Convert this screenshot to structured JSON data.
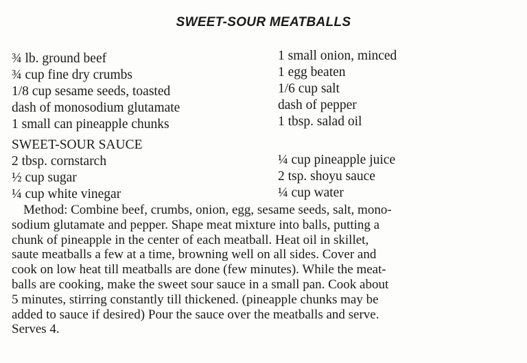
{
  "title": "SWEET-SOUR MEATBALLS",
  "ingredients_left": [
    "¾ lb. ground beef",
    "¾ cup fine dry crumbs",
    "1/8 cup sesame seeds, toasted",
    "dash of monosodium glutamate",
    "1 small can pineapple chunks"
  ],
  "ingredients_right": [
    "1 small onion, minced",
    "1 egg beaten",
    "1/6 cup salt",
    "dash of pepper",
    "1 tbsp. salad oil"
  ],
  "sauce": {
    "heading": "SWEET-SOUR SAUCE",
    "left": [
      "2 tbsp. cornstarch",
      "½ cup sugar",
      "¼ cup white vinegar"
    ],
    "right": [
      "¼ cup pineapple juice",
      "2 tsp. shoyu sauce",
      "¼ cup water"
    ]
  },
  "method_lines": [
    "Method: Combine beef, crumbs, onion, egg, sesame seeds, salt, mono-",
    "sodium glutamate and pepper. Shape meat mixture into balls, putting a",
    "chunk of pineapple in the center of each meatball. Heat oil in skillet,",
    "saute meatballs a few at a time, browning well on all sides. Cover and",
    "cook on low heat till meatballs are done (few minutes). While the meat-",
    "balls are cooking, make the sweet sour sauce in a small pan. Cook about",
    "5 minutes, stirring constantly till thickened. (pineapple chunks may be",
    "added to sauce if desired) Pour the sauce over the meatballs and serve.",
    "Serves 4."
  ]
}
